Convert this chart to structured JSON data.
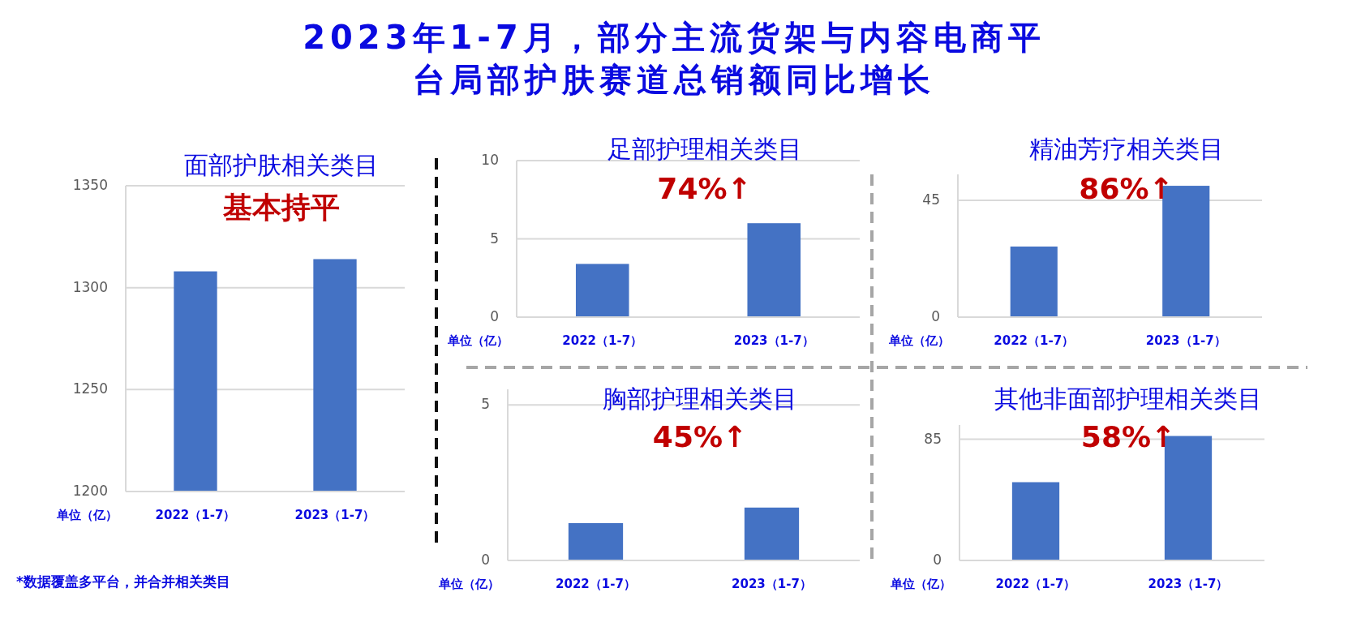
{
  "chart_data": [
    {
      "type": "other",
      "title": "2023年1-7月，部分主流货架与内容电商平台局部护肤赛道总销额同比增长",
      "annotations": [
        "*数据覆盖多平台，并合并相关类目"
      ]
    },
    {
      "type": "bar",
      "title": "面部护肤相关类目",
      "annotations": [
        "基本持平"
      ],
      "ylabel": "单位（亿）",
      "categories": [
        "2022（1-7）",
        "2023（1-7）"
      ],
      "values": [
        1308,
        1314
      ],
      "color": "#4472c4",
      "ylim": [
        1200,
        1350
      ],
      "yticks": [
        1200,
        1250,
        1300,
        1350
      ],
      "grid": "y"
    },
    {
      "type": "bar",
      "title": "足部护理相关类目",
      "annotations": [
        "74%↑"
      ],
      "ylabel": "单位（亿）",
      "categories": [
        "2022（1-7）",
        "2023（1-7）"
      ],
      "values": [
        3.4,
        6.0
      ],
      "color": "#4472c4",
      "ylim": [
        0,
        10
      ],
      "yticks": [
        0,
        5,
        10
      ],
      "grid": "y"
    },
    {
      "type": "bar",
      "title": "精油芳疗相关类目",
      "annotations": [
        "86%↑"
      ],
      "ylabel": "单位（亿）",
      "categories": [
        "2022（1-7）",
        "2023（1-7）"
      ],
      "values": [
        27.2,
        50.6
      ],
      "color": "#4472c4",
      "ylim": [
        0,
        55
      ],
      "yticks": [
        0,
        45
      ],
      "grid": "y"
    },
    {
      "type": "bar",
      "title": "胸部护理相关类目",
      "annotations": [
        "45%↑"
      ],
      "ylabel": "单位（亿）",
      "categories": [
        "2022（1-7）",
        "2023（1-7）"
      ],
      "values": [
        1.2,
        1.7
      ],
      "color": "#4472c4",
      "ylim": [
        0,
        5.5
      ],
      "yticks": [
        0,
        5
      ],
      "grid": "y"
    },
    {
      "type": "bar",
      "title": "其他非面部护理相关类目",
      "annotations": [
        "58%↑"
      ],
      "ylabel": "单位（亿）",
      "categories": [
        "2022（1-7）",
        "2023（1-7）"
      ],
      "values": [
        54.9,
        87.3
      ],
      "color": "#4472c4",
      "ylim": [
        0,
        95
      ],
      "yticks": [
        0,
        85
      ],
      "grid": "y"
    }
  ]
}
